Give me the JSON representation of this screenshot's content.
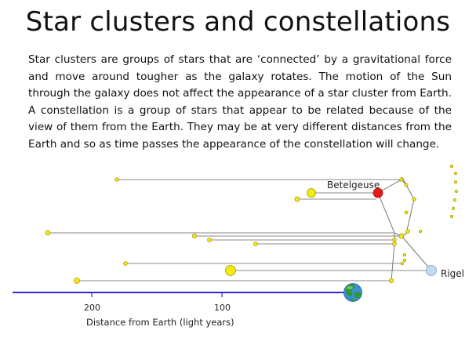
{
  "slide": {
    "title": "Star clusters and constellations",
    "body": "Star clusters are groups of stars that are ‘connected’ by a gravitational force and move around tougher as the galaxy rotates. The motion of the Sun through the galaxy does not affect the appearance of a star cluster from Earth. A constellation is a group of stars that appear to be related because of the view of them from the Earth. They may be at very different distances from the Earth and so as time passes the appearance of the constellation will change."
  },
  "diagram": {
    "axis_title": "Distance from Earth (light years)",
    "ticks": [
      "200",
      "100"
    ],
    "labels": {
      "betelgeuse": "Betelgeuse",
      "rigel": "Rigel"
    },
    "colors": {
      "axis": "#2b2bd6",
      "star_fill": "#f3ea10",
      "star_stroke": "#a89a00",
      "betelgeuse": "#e31a1a",
      "rigel": "#c7d8f2",
      "line": "#777777",
      "earth_ocean": "#3a8fd8",
      "earth_land": "#2e9a33"
    }
  }
}
